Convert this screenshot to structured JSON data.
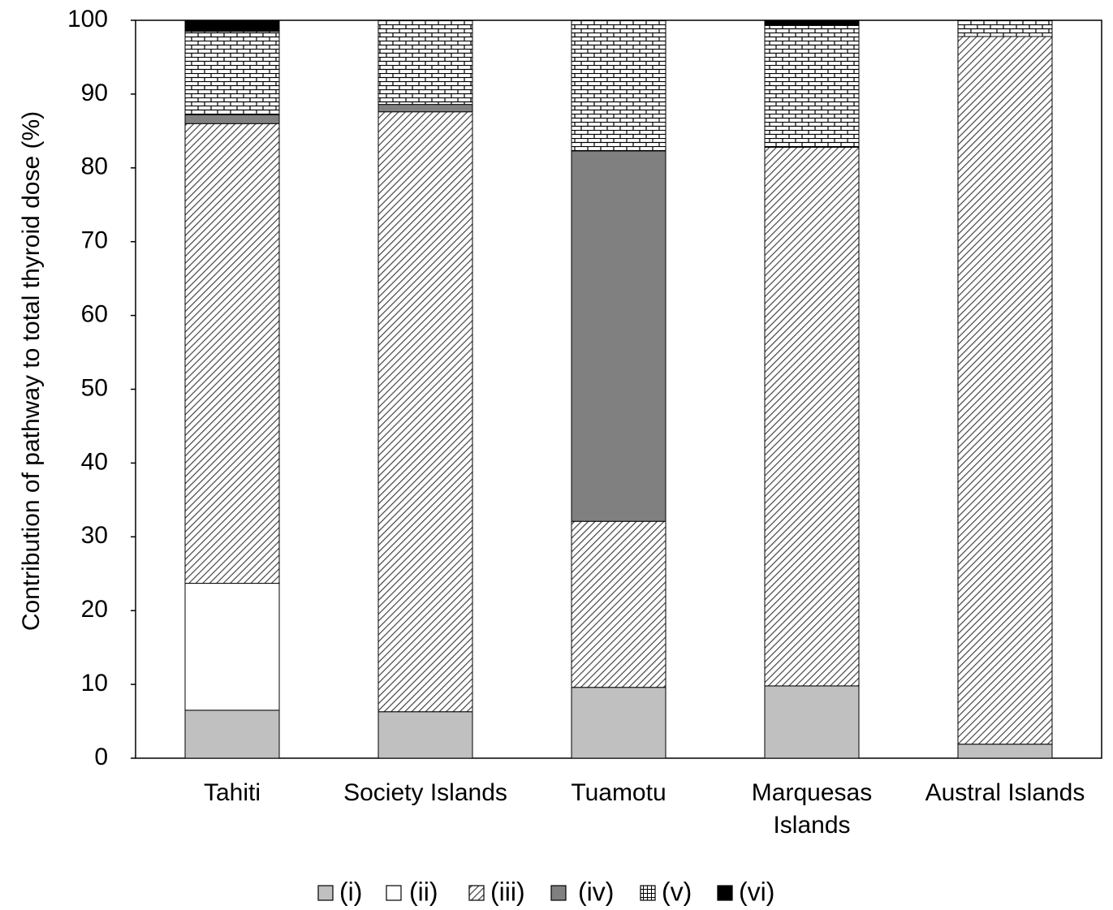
{
  "chart_data": {
    "type": "bar",
    "stacked": true,
    "ylabel": "Contribution of pathway to total thyroid dose (%)",
    "xlabel": "",
    "ylim": [
      0,
      100
    ],
    "yticks": [
      0,
      10,
      20,
      30,
      40,
      50,
      60,
      70,
      80,
      90,
      100
    ],
    "categories": [
      [
        "Tahiti"
      ],
      [
        "Society Islands"
      ],
      [
        "Tuamotu"
      ],
      [
        "Marquesas",
        "Islands"
      ],
      [
        "Austral Islands"
      ]
    ],
    "series": [
      {
        "name": "(i)",
        "pattern": "solid-light-gray",
        "color": "#c0c0c0",
        "values": [
          6.5,
          6.3,
          9.6,
          9.8,
          1.9
        ]
      },
      {
        "name": "(ii)",
        "pattern": "white",
        "color": "#ffffff",
        "values": [
          17.2,
          0,
          0,
          0,
          0
        ]
      },
      {
        "name": "(iii)",
        "pattern": "diagonal-hatch",
        "color": "#808080",
        "values": [
          62.3,
          81.3,
          22.5,
          73.0,
          95.9
        ]
      },
      {
        "name": "(iv)",
        "pattern": "solid-dark-gray",
        "color": "#808080",
        "values": [
          1.2,
          1.0,
          50.2,
          0,
          0
        ]
      },
      {
        "name": "(v)",
        "pattern": "brick",
        "color": "#000000",
        "values": [
          11.3,
          11.4,
          17.7,
          16.5,
          2.2
        ]
      },
      {
        "name": "(vi)",
        "pattern": "solid-black",
        "color": "#000000",
        "values": [
          1.5,
          0,
          0,
          0.7,
          0
        ]
      }
    ],
    "legend_position": "bottom",
    "grid": false
  }
}
